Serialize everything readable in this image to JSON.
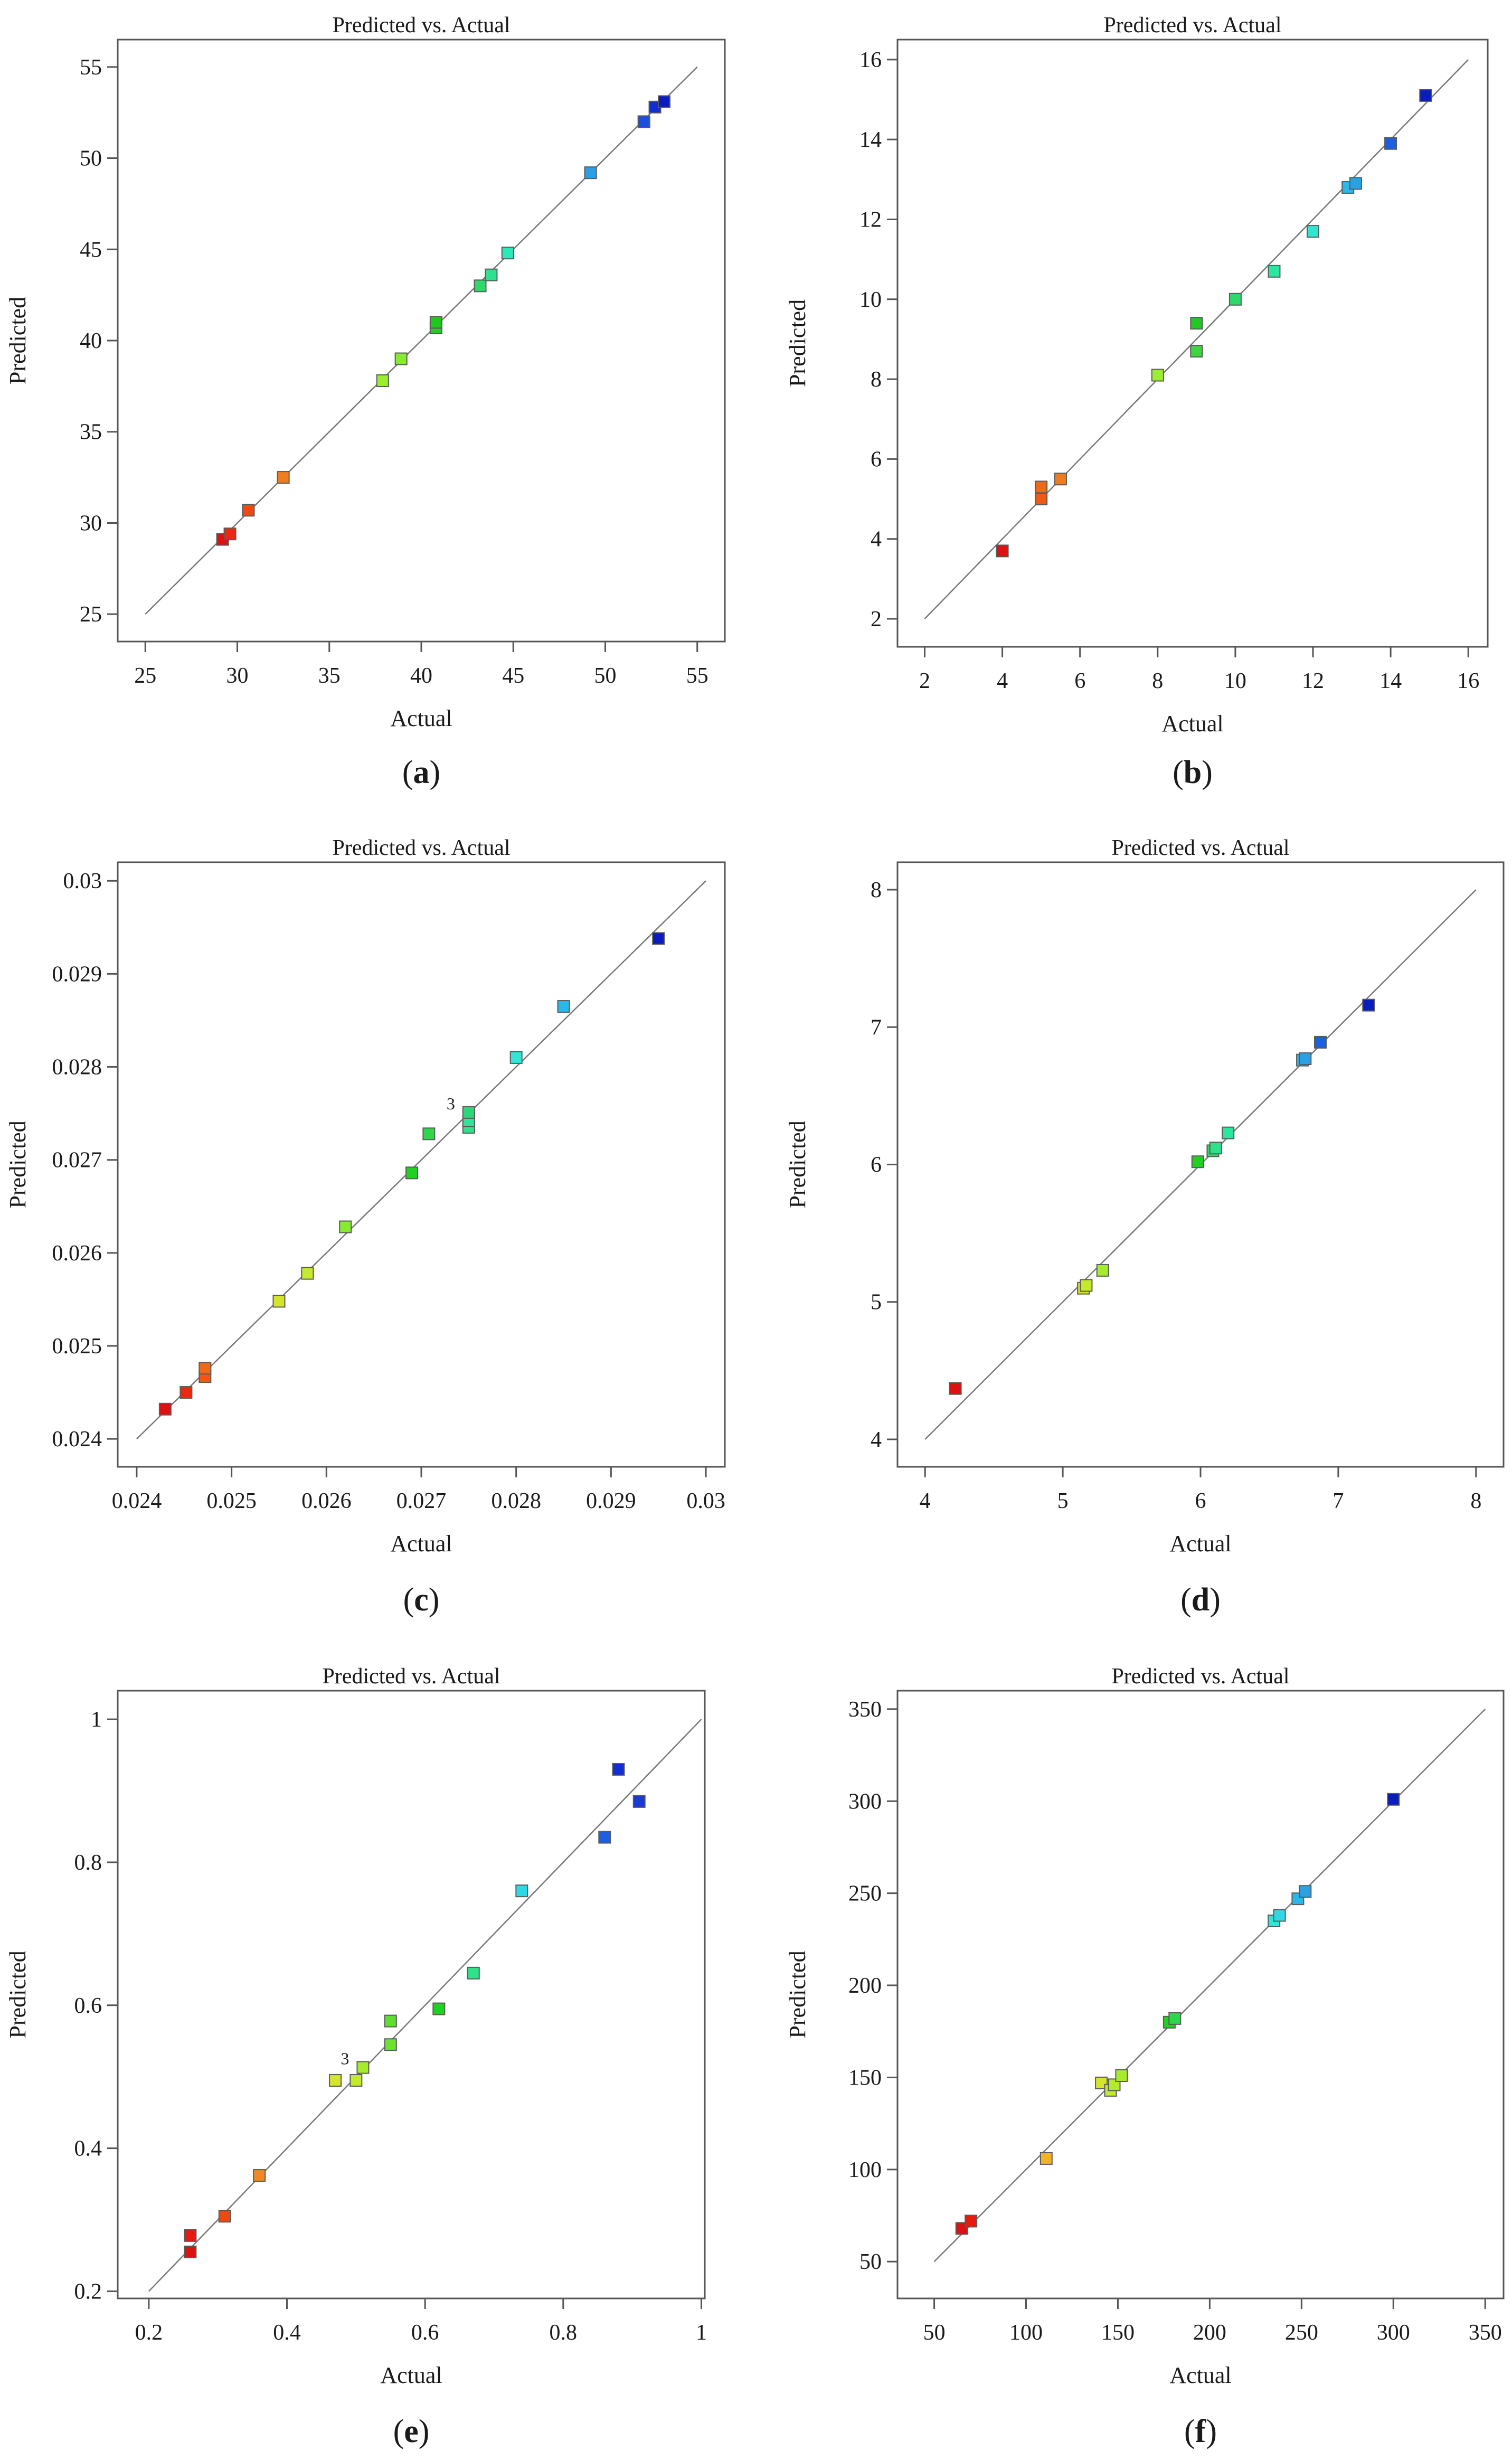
{
  "figure": {
    "panels": [
      {
        "letter_open": "(",
        "letter": "a",
        "letter_close": ")"
      },
      {
        "letter_open": "(",
        "letter": "b",
        "letter_close": ")"
      },
      {
        "letter_open": "(",
        "letter": "c",
        "letter_close": ")"
      },
      {
        "letter_open": "(",
        "letter": "d",
        "letter_close": ")"
      },
      {
        "letter_open": "(",
        "letter": "e",
        "letter_close": ")"
      },
      {
        "letter_open": "(",
        "letter": "f",
        "letter_close": ")"
      }
    ]
  },
  "chart_data": [
    {
      "type": "scatter",
      "title": "Predicted vs. Actual",
      "xlabel": "Actual",
      "ylabel": "Predicted",
      "xlim": [
        23.5,
        56.5
      ],
      "ylim": [
        23.5,
        56.5
      ],
      "xticks": [
        25,
        30,
        35,
        40,
        45,
        50,
        55
      ],
      "xtick_labels": [
        "25",
        "30",
        "35",
        "40",
        "45",
        "50",
        "55"
      ],
      "yticks": [
        25,
        30,
        35,
        40,
        45,
        50,
        55
      ],
      "ytick_labels": [
        "25",
        "30",
        "35",
        "40",
        "45",
        "50",
        "55"
      ],
      "line": [
        25,
        55
      ],
      "points": [
        {
          "x": 29.2,
          "y": 29.1,
          "color": "#dd1111"
        },
        {
          "x": 29.6,
          "y": 29.4,
          "color": "#ea2a10"
        },
        {
          "x": 30.6,
          "y": 30.7,
          "color": "#ec4a12"
        },
        {
          "x": 32.5,
          "y": 32.5,
          "color": "#ef7d1f"
        },
        {
          "x": 37.9,
          "y": 37.8,
          "color": "#9bee2e"
        },
        {
          "x": 38.9,
          "y": 39.0,
          "color": "#86ec2e"
        },
        {
          "x": 40.8,
          "y": 40.7,
          "color": "#22d022"
        },
        {
          "x": 40.8,
          "y": 41.0,
          "color": "#1ec91e"
        },
        {
          "x": 43.2,
          "y": 43.0,
          "color": "#2ed86a"
        },
        {
          "x": 43.8,
          "y": 43.6,
          "color": "#2de18e"
        },
        {
          "x": 44.7,
          "y": 44.8,
          "color": "#2ceab8"
        },
        {
          "x": 49.2,
          "y": 49.2,
          "color": "#2a9fe5"
        },
        {
          "x": 52.1,
          "y": 52.0,
          "color": "#1c4fe0"
        },
        {
          "x": 52.7,
          "y": 52.8,
          "color": "#0f2fd2"
        },
        {
          "x": 53.2,
          "y": 53.1,
          "color": "#0a1cbf"
        }
      ],
      "annotations": []
    },
    {
      "type": "scatter",
      "title": "Predicted vs. Actual",
      "xlabel": "Actual",
      "ylabel": "Predicted",
      "xlim": [
        1.3,
        16.5
      ],
      "ylim": [
        1.3,
        16.5
      ],
      "xticks": [
        2,
        4,
        6,
        8,
        10,
        12,
        14,
        16
      ],
      "xtick_labels": [
        "2",
        "4",
        "6",
        "8",
        "10",
        "12",
        "14",
        "16"
      ],
      "yticks": [
        2,
        4,
        6,
        8,
        10,
        12,
        14,
        16
      ],
      "ytick_labels": [
        "2",
        "4",
        "6",
        "8",
        "10",
        "12",
        "14",
        "16"
      ],
      "line": [
        2,
        16
      ],
      "points": [
        {
          "x": 4.0,
          "y": 3.7,
          "color": "#dd1111"
        },
        {
          "x": 5.0,
          "y": 5.0,
          "color": "#ec5a14"
        },
        {
          "x": 5.0,
          "y": 5.3,
          "color": "#ef6a18"
        },
        {
          "x": 5.5,
          "y": 5.5,
          "color": "#ef7d1f"
        },
        {
          "x": 8.0,
          "y": 8.1,
          "color": "#9bee2e"
        },
        {
          "x": 9.0,
          "y": 8.7,
          "color": "#3bd640"
        },
        {
          "x": 9.0,
          "y": 9.4,
          "color": "#22c922"
        },
        {
          "x": 10.0,
          "y": 10.0,
          "color": "#2ed86a"
        },
        {
          "x": 11.0,
          "y": 10.7,
          "color": "#2ce6a0"
        },
        {
          "x": 12.0,
          "y": 11.7,
          "color": "#2ee7d0"
        },
        {
          "x": 12.9,
          "y": 12.8,
          "color": "#2ab7e9"
        },
        {
          "x": 13.1,
          "y": 12.9,
          "color": "#2aa0e5"
        },
        {
          "x": 14.0,
          "y": 13.9,
          "color": "#1c5fe0"
        },
        {
          "x": 14.9,
          "y": 15.1,
          "color": "#0a1cbf"
        }
      ],
      "annotations": []
    },
    {
      "type": "scatter",
      "title": "Predicted vs. Actual",
      "xlabel": "Actual",
      "ylabel": "Predicted",
      "xlim": [
        0.0238,
        0.0302
      ],
      "ylim": [
        0.0237,
        0.0302
      ],
      "xticks": [
        0.024,
        0.025,
        0.026,
        0.027,
        0.028,
        0.029,
        0.03
      ],
      "xtick_labels": [
        "0.024",
        "0.025",
        "0.026",
        "0.027",
        "0.028",
        "0.029",
        "0.03"
      ],
      "yticks": [
        0.024,
        0.025,
        0.026,
        0.027,
        0.028,
        0.029,
        0.03
      ],
      "ytick_labels": [
        "0.024",
        "0.025",
        "0.026",
        "0.027",
        "0.028",
        "0.029",
        "0.03"
      ],
      "line": [
        0.024,
        0.03
      ],
      "points": [
        {
          "x": 0.0243,
          "y": 0.02432,
          "color": "#dd1111"
        },
        {
          "x": 0.02452,
          "y": 0.0245,
          "color": "#ea2a10"
        },
        {
          "x": 0.02472,
          "y": 0.02467,
          "color": "#ec5a14"
        },
        {
          "x": 0.02472,
          "y": 0.02476,
          "color": "#ef6a18"
        },
        {
          "x": 0.0255,
          "y": 0.02548,
          "color": "#d4e62a"
        },
        {
          "x": 0.0258,
          "y": 0.02578,
          "color": "#c4ea2c"
        },
        {
          "x": 0.0262,
          "y": 0.02628,
          "color": "#86ec2e"
        },
        {
          "x": 0.0269,
          "y": 0.02686,
          "color": "#22d022"
        },
        {
          "x": 0.02708,
          "y": 0.02728,
          "color": "#2ed84a"
        },
        {
          "x": 0.0275,
          "y": 0.02735,
          "color": "#2ee28a"
        },
        {
          "x": 0.0275,
          "y": 0.02742,
          "color": "#2ce69a"
        },
        {
          "x": 0.0275,
          "y": 0.02751,
          "color": "#2ad87a"
        },
        {
          "x": 0.028,
          "y": 0.0281,
          "color": "#2ee7d8"
        },
        {
          "x": 0.0285,
          "y": 0.02865,
          "color": "#2ab7e9"
        },
        {
          "x": 0.0295,
          "y": 0.02938,
          "color": "#0a1cbf"
        }
      ],
      "annotations": [
        {
          "text": "3",
          "x": 0.0275,
          "y": 0.02751
        }
      ]
    },
    {
      "type": "scatter",
      "title": "Predicted vs. Actual",
      "xlabel": "Actual",
      "ylabel": "Predicted",
      "xlim": [
        3.8,
        8.2
      ],
      "ylim": [
        3.8,
        8.2
      ],
      "xticks": [
        4,
        5,
        6,
        7,
        8
      ],
      "xtick_labels": [
        "4",
        "5",
        "6",
        "7",
        "8"
      ],
      "yticks": [
        4,
        5,
        6,
        7,
        8
      ],
      "ytick_labels": [
        "4",
        "5",
        "6",
        "7",
        "8"
      ],
      "line": [
        4,
        8
      ],
      "points": [
        {
          "x": 4.22,
          "y": 4.37,
          "color": "#dd1111"
        },
        {
          "x": 5.15,
          "y": 5.1,
          "color": "#d4e62a"
        },
        {
          "x": 5.17,
          "y": 5.12,
          "color": "#c4ea2c"
        },
        {
          "x": 5.29,
          "y": 5.23,
          "color": "#a6ec2e"
        },
        {
          "x": 5.98,
          "y": 6.02,
          "color": "#22d022"
        },
        {
          "x": 6.09,
          "y": 6.1,
          "color": "#2ed86a"
        },
        {
          "x": 6.11,
          "y": 6.12,
          "color": "#2ee28a"
        },
        {
          "x": 6.2,
          "y": 6.23,
          "color": "#2ce6a0"
        },
        {
          "x": 6.74,
          "y": 6.76,
          "color": "#2ab7e9"
        },
        {
          "x": 6.76,
          "y": 6.77,
          "color": "#2aa0e5"
        },
        {
          "x": 6.87,
          "y": 6.89,
          "color": "#1c5fe0"
        },
        {
          "x": 7.22,
          "y": 7.16,
          "color": "#0a1cbf"
        }
      ],
      "annotations": []
    },
    {
      "type": "scatter",
      "title": "Predicted vs. Actual",
      "xlabel": "Actual",
      "ylabel": "Predicted",
      "xlim": [
        0.155,
        1.005
      ],
      "ylim": [
        0.19,
        1.04
      ],
      "xticks": [
        0.2,
        0.4,
        0.6,
        0.8,
        1.0
      ],
      "xtick_labels": [
        "0.2",
        "0.4",
        "0.6",
        "0.8",
        "1"
      ],
      "yticks": [
        0.2,
        0.4,
        0.6,
        0.8,
        1.0
      ],
      "ytick_labels": [
        "0.2",
        "0.4",
        "0.6",
        "0.8",
        "1"
      ],
      "line": [
        0.2,
        1.0
      ],
      "points": [
        {
          "x": 0.26,
          "y": 0.255,
          "color": "#dd1111"
        },
        {
          "x": 0.26,
          "y": 0.278,
          "color": "#e51a10"
        },
        {
          "x": 0.31,
          "y": 0.305,
          "color": "#ec4a12"
        },
        {
          "x": 0.36,
          "y": 0.362,
          "color": "#ef8a22"
        },
        {
          "x": 0.47,
          "y": 0.495,
          "color": "#d4e62a"
        },
        {
          "x": 0.5,
          "y": 0.495,
          "color": "#c4ea2c"
        },
        {
          "x": 0.51,
          "y": 0.513,
          "color": "#a6ec2e"
        },
        {
          "x": 0.55,
          "y": 0.545,
          "color": "#6ee22e"
        },
        {
          "x": 0.55,
          "y": 0.578,
          "color": "#5ede2e"
        },
        {
          "x": 0.62,
          "y": 0.595,
          "color": "#22d022"
        },
        {
          "x": 0.67,
          "y": 0.645,
          "color": "#2ee28a"
        },
        {
          "x": 0.74,
          "y": 0.76,
          "color": "#2ed8e6"
        },
        {
          "x": 0.86,
          "y": 0.835,
          "color": "#1c5fe0"
        },
        {
          "x": 0.88,
          "y": 0.93,
          "color": "#0f2fd2"
        },
        {
          "x": 0.91,
          "y": 0.885,
          "color": "#1a3ad8"
        }
      ],
      "annotations": [
        {
          "text": "3",
          "x": 0.51,
          "y": 0.513
        }
      ]
    },
    {
      "type": "scatter",
      "title": "Predicted vs. Actual",
      "xlabel": "Actual",
      "ylabel": "Predicted",
      "xlim": [
        30,
        360
      ],
      "ylim": [
        30,
        360
      ],
      "xticks": [
        50,
        100,
        150,
        200,
        250,
        300,
        350
      ],
      "xtick_labels": [
        "50",
        "100",
        "150",
        "200",
        "250",
        "300",
        "350"
      ],
      "yticks": [
        50,
        100,
        150,
        200,
        250,
        300,
        350
      ],
      "ytick_labels": [
        "50",
        "100",
        "150",
        "200",
        "250",
        "300",
        "350"
      ],
      "line": [
        50,
        350
      ],
      "points": [
        {
          "x": 65,
          "y": 68,
          "color": "#dd1111"
        },
        {
          "x": 70,
          "y": 72,
          "color": "#e51a10"
        },
        {
          "x": 111,
          "y": 106,
          "color": "#f0b426"
        },
        {
          "x": 141,
          "y": 147,
          "color": "#d4e62a"
        },
        {
          "x": 146,
          "y": 143,
          "color": "#c4ea2c"
        },
        {
          "x": 148,
          "y": 146,
          "color": "#b4ea2c"
        },
        {
          "x": 152,
          "y": 151,
          "color": "#a6ec2e"
        },
        {
          "x": 178,
          "y": 180,
          "color": "#22d022"
        },
        {
          "x": 181,
          "y": 182,
          "color": "#2ad84a"
        },
        {
          "x": 235,
          "y": 235,
          "color": "#2ee7d8"
        },
        {
          "x": 238,
          "y": 238,
          "color": "#2ed8e6"
        },
        {
          "x": 248,
          "y": 247,
          "color": "#2ab7e9"
        },
        {
          "x": 252,
          "y": 251,
          "color": "#2aa0e5"
        },
        {
          "x": 300,
          "y": 301,
          "color": "#0a1cbf"
        }
      ],
      "annotations": []
    }
  ]
}
